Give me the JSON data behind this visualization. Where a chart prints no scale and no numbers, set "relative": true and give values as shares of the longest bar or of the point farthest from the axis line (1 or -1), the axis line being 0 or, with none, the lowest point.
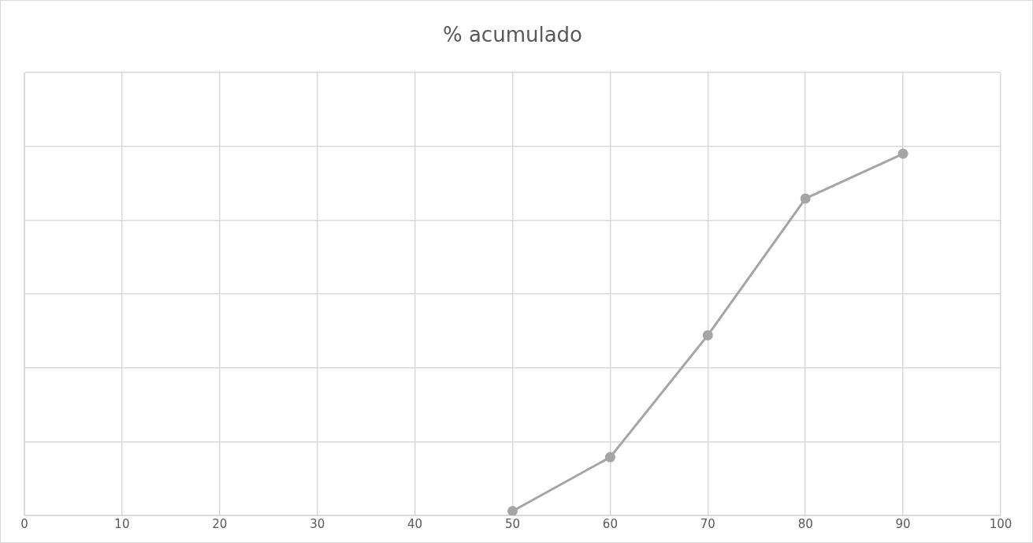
{
  "chart_data": {
    "type": "line",
    "title": "% acumulado",
    "relative": true,
    "x": [
      50,
      60,
      70,
      80,
      90
    ],
    "series": [
      {
        "color": "#a5a5a5",
        "values": [
          0.012,
          0.161,
          0.498,
          0.876,
          1
        ]
      }
    ],
    "xlim": [
      0,
      100
    ],
    "xticks": [
      0,
      10,
      20,
      30,
      40,
      50,
      60,
      70,
      80,
      90,
      100
    ],
    "grid": true,
    "marker": "circle",
    "line_style": "solid",
    "legend": false,
    "tick_labels": "x"
  }
}
